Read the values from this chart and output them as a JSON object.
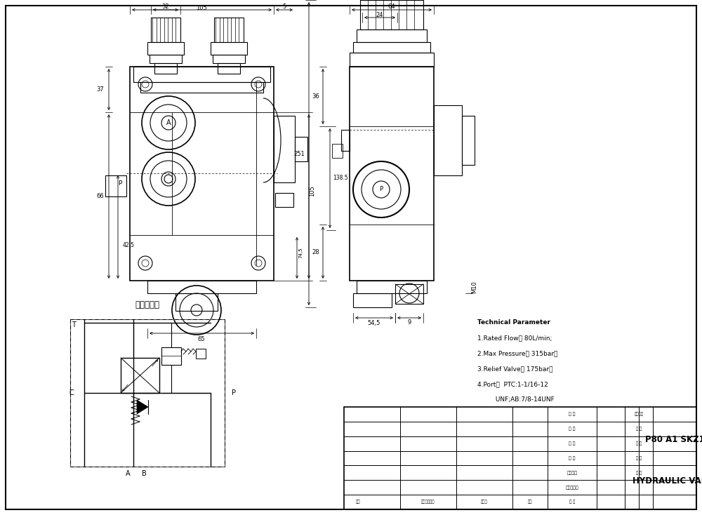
{
  "bg_color": "#ffffff",
  "tech_params": [
    "Technical Parameter",
    "1.Rated Flow： 80L/min;",
    "2.Max Pressure： 315bar，",
    "3.Relief Valve： 175bar；",
    "4.Port：  PTC:1-1/16-12",
    "         UNF;AB:7/8-14UNF"
  ],
  "schematic_title": "液压原理图",
  "p80": "P80 A1 SKZ1",
  "hydraulic": "HYDRAULIC VALVE",
  "tb_rows": [
    "设 计",
    "制 图",
    "描 图",
    "校 对",
    "工艺检查",
    "标准化检查"
  ],
  "tb_cols": [
    "标记",
    "更改内容概要",
    "更改人",
    "日期",
    "审 核"
  ],
  "tb_mid": [
    "图样标记",
    "重 量",
    "比 例",
    "共 计",
    "张 数"
  ]
}
